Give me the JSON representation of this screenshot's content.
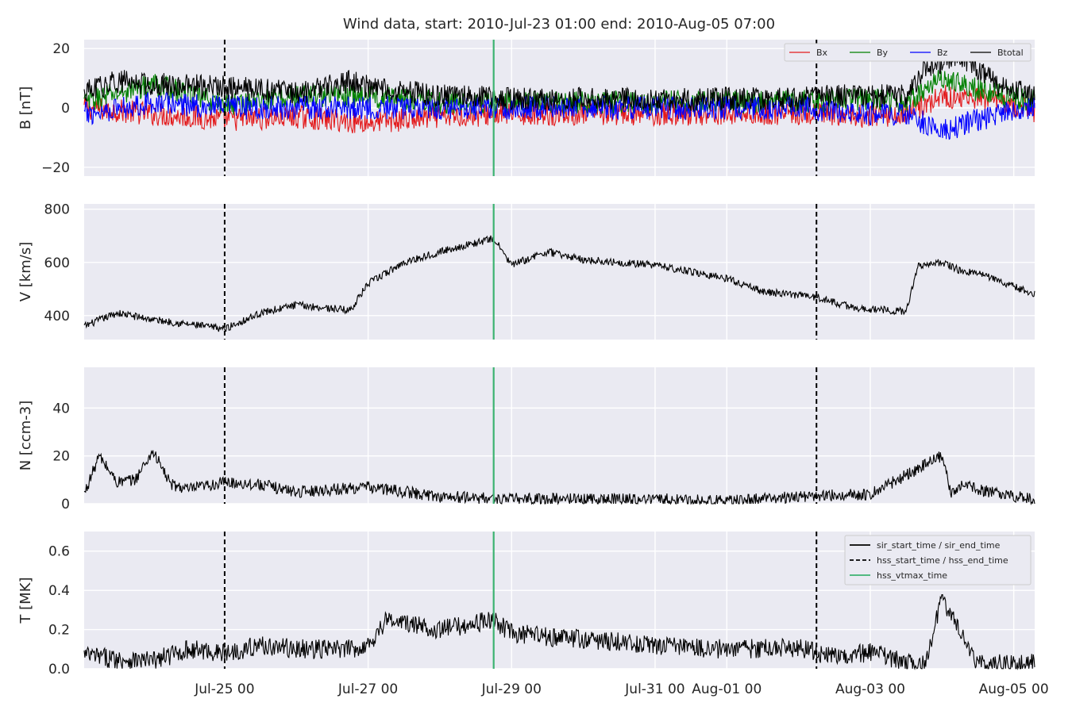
{
  "chart_data": {
    "type": "line",
    "title": "Wind data, start: 2010-Jul-23 01:00  end: 2010-Aug-05 07:00",
    "x_range": [
      "2010-07-23 01:00",
      "2010-08-05 07:00"
    ],
    "x_ticks": [
      {
        "date": "2010-07-25 00:00",
        "label": "Jul-25 00"
      },
      {
        "date": "2010-07-27 00:00",
        "label": "Jul-27 00"
      },
      {
        "date": "2010-07-29 00:00",
        "label": "Jul-29 00"
      },
      {
        "date": "2010-07-31 00:00",
        "label": "Jul-31 00"
      },
      {
        "date": "2010-08-01 00:00",
        "label": "Aug-01 00"
      },
      {
        "date": "2010-08-03 00:00",
        "label": "Aug-03 00"
      },
      {
        "date": "2010-08-05 00:00",
        "label": "Aug-05 00"
      }
    ],
    "grid": true,
    "event_lines": [
      {
        "date": "2010-07-25 00:00",
        "style": "dashed",
        "color": "#000000"
      },
      {
        "date": "2010-07-28 18:00",
        "style": "solid",
        "color": "#3cb371"
      },
      {
        "date": "2010-08-02 06:00",
        "style": "dashed",
        "color": "#000000"
      }
    ],
    "panels": [
      {
        "ylabel": "B [nT]",
        "ylim": [
          -23,
          23
        ],
        "yticks": [
          {
            "v": 20,
            "label": "20"
          },
          {
            "v": 0,
            "label": "0"
          },
          {
            "v": -20,
            "label": "−20"
          }
        ],
        "legend_position": "top-right",
        "legend_columns": 4,
        "series": [
          {
            "name": "Bx",
            "color": "#e31a1c",
            "x": [
              "2010-07-23 01:00",
              "2010-07-24 00:00",
              "2010-07-25 00:00",
              "2010-07-26 00:00",
              "2010-07-27 00:00",
              "2010-07-28 00:00",
              "2010-07-29 00:00",
              "2010-07-30 00:00",
              "2010-07-31 00:00",
              "2010-08-01 00:00",
              "2010-08-02 00:00",
              "2010-08-03 00:00",
              "2010-08-03 12:00",
              "2010-08-04 00:00",
              "2010-08-04 12:00",
              "2010-08-05 07:00"
            ],
            "y": [
              0,
              -2,
              -4,
              -3,
              -5,
              -3,
              -2,
              -2,
              -2,
              -2,
              -2,
              -3,
              -2,
              4,
              3,
              -1
            ]
          },
          {
            "name": "By",
            "color": "#008000",
            "x": [
              "2010-07-23 01:00",
              "2010-07-24 00:00",
              "2010-07-25 00:00",
              "2010-07-26 00:00",
              "2010-07-27 00:00",
              "2010-07-28 00:00",
              "2010-07-29 00:00",
              "2010-07-30 00:00",
              "2010-07-31 00:00",
              "2010-08-01 00:00",
              "2010-08-02 00:00",
              "2010-08-03 00:00",
              "2010-08-03 12:00",
              "2010-08-04 00:00",
              "2010-08-04 12:00",
              "2010-08-05 07:00"
            ],
            "y": [
              2,
              8,
              1,
              4,
              4,
              2,
              2,
              2,
              2,
              2,
              2,
              3,
              2,
              10,
              6,
              2
            ]
          },
          {
            "name": "Bz",
            "color": "#0000ff",
            "x": [
              "2010-07-23 01:00",
              "2010-07-24 00:00",
              "2010-07-25 00:00",
              "2010-07-26 00:00",
              "2010-07-27 00:00",
              "2010-07-28 00:00",
              "2010-07-29 00:00",
              "2010-07-30 00:00",
              "2010-07-31 00:00",
              "2010-08-01 00:00",
              "2010-08-02 00:00",
              "2010-08-03 00:00",
              "2010-08-03 12:00",
              "2010-08-04 00:00",
              "2010-08-04 12:00",
              "2010-08-05 07:00"
            ],
            "y": [
              -2,
              2,
              0,
              0,
              0,
              0,
              0,
              0,
              0,
              0,
              0,
              -2,
              -2,
              -8,
              -4,
              0
            ]
          },
          {
            "name": "Btotal",
            "color": "#000000",
            "x": [
              "2010-07-23 01:00",
              "2010-07-23 12:00",
              "2010-07-24 00:00",
              "2010-07-25 00:00",
              "2010-07-26 00:00",
              "2010-07-26 18:00",
              "2010-07-27 00:00",
              "2010-07-28 00:00",
              "2010-07-29 00:00",
              "2010-07-30 00:00",
              "2010-07-31 00:00",
              "2010-08-01 00:00",
              "2010-08-02 00:00",
              "2010-08-02 12:00",
              "2010-08-03 00:00",
              "2010-08-03 12:00",
              "2010-08-03 18:00",
              "2010-08-04 06:00",
              "2010-08-04 18:00",
              "2010-08-05 07:00"
            ],
            "y": [
              5,
              9,
              8,
              7,
              5,
              9,
              7,
              4,
              3,
              3,
              3,
              3,
              3,
              4,
              4,
              4,
              13,
              18,
              8,
              4
            ]
          }
        ]
      },
      {
        "ylabel": "V [km/s]",
        "ylim": [
          310,
          820
        ],
        "yticks": [
          {
            "v": 800,
            "label": "800"
          },
          {
            "v": 600,
            "label": "600"
          },
          {
            "v": 400,
            "label": "400"
          }
        ],
        "series": [
          {
            "name": "V",
            "color": "#000000",
            "x": [
              "2010-07-23 01:00",
              "2010-07-23 12:00",
              "2010-07-24 00:00",
              "2010-07-25 00:00",
              "2010-07-25 12:00",
              "2010-07-26 00:00",
              "2010-07-26 18:00",
              "2010-07-27 00:00",
              "2010-07-27 12:00",
              "2010-07-28 00:00",
              "2010-07-28 18:00",
              "2010-07-29 00:00",
              "2010-07-29 12:00",
              "2010-07-30 00:00",
              "2010-07-31 00:00",
              "2010-08-01 00:00",
              "2010-08-01 12:00",
              "2010-08-02 06:00",
              "2010-08-02 18:00",
              "2010-08-03 12:00",
              "2010-08-03 16:00",
              "2010-08-04 00:00",
              "2010-08-04 06:00",
              "2010-08-04 12:00",
              "2010-08-05 07:00"
            ],
            "y": [
              360,
              410,
              385,
              350,
              410,
              440,
              420,
              520,
              600,
              640,
              690,
              590,
              640,
              610,
              590,
              540,
              490,
              470,
              430,
              415,
              590,
              600,
              570,
              560,
              480
            ]
          }
        ]
      },
      {
        "ylabel": "N [ccm-3]",
        "ylim": [
          0,
          57
        ],
        "yticks": [
          {
            "v": 40,
            "label": "40"
          },
          {
            "v": 20,
            "label": "20"
          },
          {
            "v": 0,
            "label": "0"
          }
        ],
        "series": [
          {
            "name": "N",
            "color": "#000000",
            "x": [
              "2010-07-23 01:00",
              "2010-07-23 06:00",
              "2010-07-23 12:00",
              "2010-07-23 18:00",
              "2010-07-24 00:00",
              "2010-07-24 06:00",
              "2010-07-24 12:00",
              "2010-07-25 00:00",
              "2010-07-25 12:00",
              "2010-07-26 00:00",
              "2010-07-27 00:00",
              "2010-07-28 00:00",
              "2010-07-29 00:00",
              "2010-07-30 00:00",
              "2010-07-31 00:00",
              "2010-08-01 00:00",
              "2010-08-02 00:00",
              "2010-08-03 00:00",
              "2010-08-03 12:00",
              "2010-08-04 00:00",
              "2010-08-04 03:00",
              "2010-08-04 06:00",
              "2010-08-04 12:00",
              "2010-08-05 00:00",
              "2010-08-05 07:00"
            ],
            "y": [
              4,
              20,
              9,
              10,
              22,
              8,
              6,
              9,
              8,
              5,
              7,
              3,
              2,
              2,
              2,
              1,
              3,
              4,
              12,
              20,
              4,
              8,
              6,
              3,
              2
            ]
          }
        ]
      },
      {
        "ylabel": "T [MK]",
        "ylim": [
          0,
          0.7
        ],
        "yticks": [
          {
            "v": 0.6,
            "label": "0.6"
          },
          {
            "v": 0.4,
            "label": "0.4"
          },
          {
            "v": 0.2,
            "label": "0.2"
          },
          {
            "v": 0.0,
            "label": "0.0"
          }
        ],
        "legend_position": "top-right",
        "legend": [
          {
            "label": "sir_start_time / sir_end_time",
            "style": "solid",
            "color": "#000000"
          },
          {
            "label": "hss_start_time / hss_end_time",
            "style": "dashed",
            "color": "#000000"
          },
          {
            "label": "hss_vtmax_time",
            "style": "solid",
            "color": "#3cb371"
          }
        ],
        "series": [
          {
            "name": "T",
            "color": "#000000",
            "x": [
              "2010-07-23 01:00",
              "2010-07-23 12:00",
              "2010-07-24 00:00",
              "2010-07-24 12:00",
              "2010-07-25 00:00",
              "2010-07-25 12:00",
              "2010-07-26 00:00",
              "2010-07-26 18:00",
              "2010-07-27 00:00",
              "2010-07-27 06:00",
              "2010-07-28 00:00",
              "2010-07-28 18:00",
              "2010-07-29 00:00",
              "2010-07-30 00:00",
              "2010-07-31 00:00",
              "2010-08-01 00:00",
              "2010-08-02 00:00",
              "2010-08-02 12:00",
              "2010-08-03 00:00",
              "2010-08-03 12:00",
              "2010-08-03 18:00",
              "2010-08-04 00:00",
              "2010-08-04 06:00",
              "2010-08-04 12:00",
              "2010-08-05 00:00",
              "2010-08-05 07:00"
            ],
            "y": [
              0.07,
              0.05,
              0.04,
              0.1,
              0.08,
              0.12,
              0.1,
              0.1,
              0.12,
              0.25,
              0.2,
              0.25,
              0.18,
              0.15,
              0.12,
              0.1,
              0.11,
              0.06,
              0.08,
              0.03,
              0.02,
              0.35,
              0.2,
              0.03,
              0.02,
              0.04
            ]
          }
        ]
      }
    ]
  }
}
